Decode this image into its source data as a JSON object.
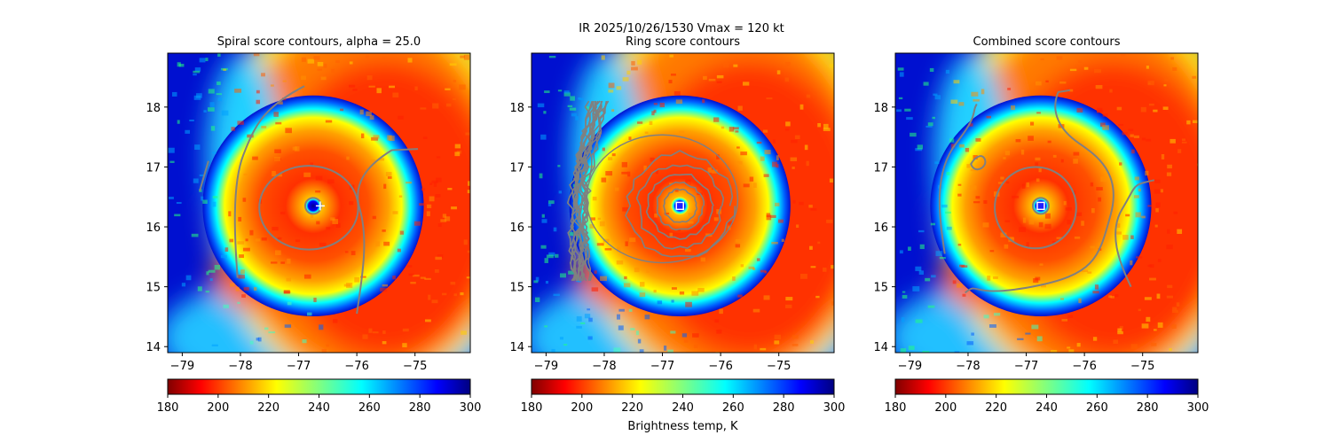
{
  "figure": {
    "suptitle_line1": "IR  2025/10/26/1530    Vmax = 120 kt"
  },
  "colors": {
    "contour": "#808080",
    "center_marker": "#ffffff",
    "colormap": [
      "#800000",
      "#ff0000",
      "#ff8000",
      "#ffff00",
      "#80ff80",
      "#00ffff",
      "#0080ff",
      "#0000ff",
      "#000080"
    ]
  },
  "chart_data": [
    {
      "type": "heatmap",
      "title": "Spiral score contours, alpha = 25.0",
      "xlim": [
        -79.25,
        -74.05
      ],
      "ylim": [
        13.9,
        18.9
      ],
      "xticks": [
        -79,
        -78,
        -77,
        -76,
        -75
      ],
      "xtick_labels": [
        "−79",
        "−78",
        "−77",
        "−76",
        "−75"
      ],
      "yticks": [
        14,
        15,
        16,
        17,
        18
      ],
      "ytick_labels": [
        "14",
        "15",
        "16",
        "17",
        "18"
      ],
      "storm_center": [
        -76.75,
        16.35
      ],
      "eye_radius_deg": 0.15,
      "marker": "plus",
      "colorbar": {
        "min": 180,
        "max": 300,
        "ticks": [
          "180",
          "200",
          "220",
          "240",
          "260",
          "280",
          "300"
        ],
        "cmap": "jet_r",
        "label": ""
      }
    },
    {
      "type": "heatmap",
      "title": "Ring score contours",
      "xlim": [
        -79.25,
        -74.05
      ],
      "ylim": [
        13.9,
        18.9
      ],
      "xticks": [
        -79,
        -78,
        -77,
        -76,
        -75
      ],
      "xtick_labels": [
        "−79",
        "−78",
        "−77",
        "−76",
        "−75"
      ],
      "yticks": [
        14,
        15,
        16,
        17,
        18
      ],
      "ytick_labels": [
        "14",
        "15",
        "16",
        "17",
        "18"
      ],
      "storm_center": [
        -76.7,
        16.35
      ],
      "eye_radius_deg": 0.15,
      "marker": "square",
      "colorbar": {
        "min": 180,
        "max": 300,
        "ticks": [
          "180",
          "200",
          "220",
          "240",
          "260",
          "280",
          "300"
        ],
        "cmap": "jet_r",
        "label": "Brightness temp, K"
      }
    },
    {
      "type": "heatmap",
      "title": "Combined score contours",
      "xlim": [
        -79.25,
        -74.05
      ],
      "ylim": [
        13.9,
        18.9
      ],
      "xticks": [
        -79,
        -78,
        -77,
        -76,
        -75
      ],
      "xtick_labels": [
        "−79",
        "−78",
        "−77",
        "−76",
        "−75"
      ],
      "yticks": [
        14,
        15,
        16,
        17,
        18
      ],
      "ytick_labels": [
        "14",
        "15",
        "16",
        "17",
        "18"
      ],
      "storm_center": [
        -76.75,
        16.35
      ],
      "eye_radius_deg": 0.15,
      "marker": "square",
      "colorbar": {
        "min": 180,
        "max": 300,
        "ticks": [
          "180",
          "200",
          "220",
          "240",
          "260",
          "280",
          "300"
        ],
        "cmap": "jet_r",
        "label": ""
      }
    }
  ]
}
